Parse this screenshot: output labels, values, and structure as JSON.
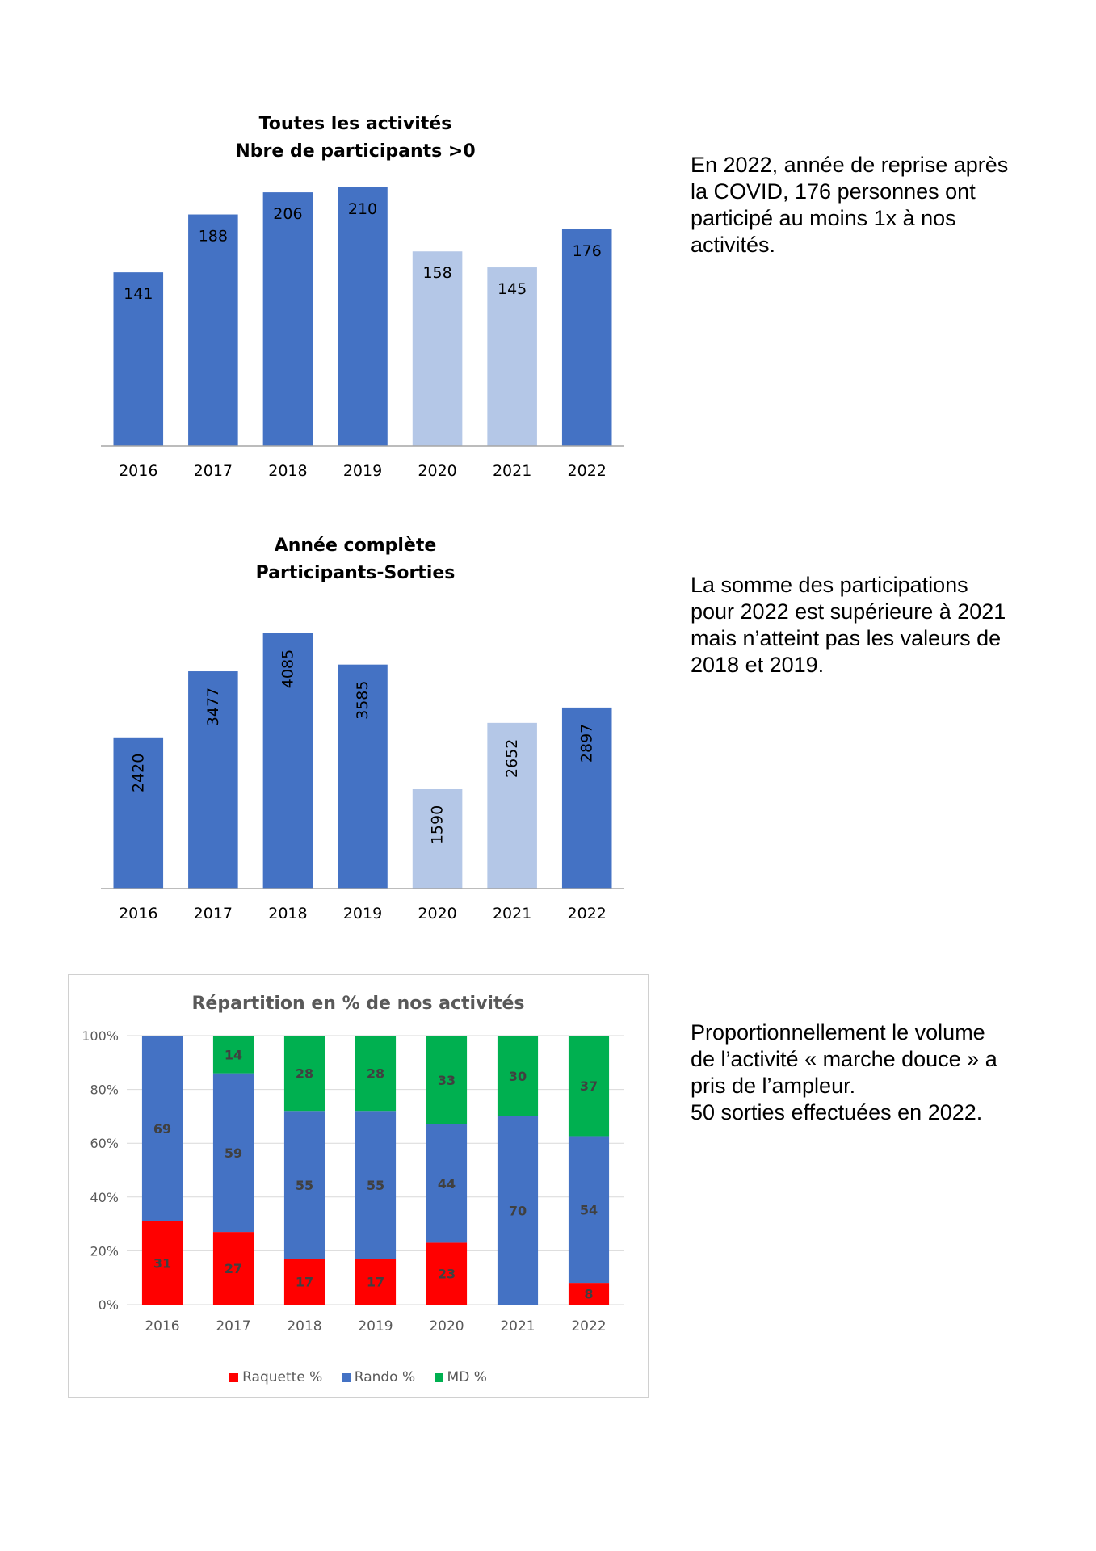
{
  "charts": [
    {
      "title_lines": [
        "Toutes les activités",
        "Nbre de participants >0"
      ],
      "chart_data": {
        "type": "bar",
        "title": "Toutes les activités Nbre de participants >0",
        "categories": [
          "2016",
          "2017",
          "2018",
          "2019",
          "2020",
          "2021",
          "2022"
        ],
        "values": [
          141,
          188,
          206,
          210,
          158,
          145,
          176
        ],
        "ylim": [
          0,
          210
        ],
        "grid": false,
        "colors": [
          "#4472c4",
          "#4472c4",
          "#4472c4",
          "#4472c4",
          "#b4c7e7",
          "#b4c7e7",
          "#4472c4"
        ],
        "data_labels": [
          "141",
          "188",
          "206",
          "210",
          "158",
          "145",
          "176"
        ]
      }
    },
    {
      "title_lines": [
        "Année complète",
        "Participants-Sorties"
      ],
      "chart_data": {
        "type": "bar",
        "title": "Année complète Participants-Sorties",
        "categories": [
          "2016",
          "2017",
          "2018",
          "2019",
          "2020",
          "2021",
          "2022"
        ],
        "values": [
          2420,
          3477,
          4085,
          3585,
          1590,
          2652,
          2897
        ],
        "ylim": [
          0,
          4085
        ],
        "grid": false,
        "label_orientation": "vertical",
        "colors": [
          "#4472c4",
          "#4472c4",
          "#4472c4",
          "#4472c4",
          "#b4c7e7",
          "#b4c7e7",
          "#4472c4"
        ],
        "data_labels": [
          "2420",
          "3477",
          "4085",
          "3585",
          "1590",
          "2652",
          "2897"
        ]
      }
    },
    {
      "title_lines": [
        "Répartition en % de nos activités"
      ],
      "chart_data": {
        "type": "bar",
        "stacked": true,
        "title": "Répartition en % de nos activités",
        "categories": [
          "2016",
          "2017",
          "2018",
          "2019",
          "2020",
          "2021",
          "2022"
        ],
        "y_ticks": [
          "0%",
          "20%",
          "40%",
          "60%",
          "80%",
          "100%"
        ],
        "ylim": [
          0,
          100
        ],
        "grid": true,
        "legend": "bottom",
        "series": [
          {
            "name": "Raquette %",
            "color": "#ff0000",
            "values": [
              31,
              27,
              17,
              17,
              23,
              0,
              8
            ],
            "labels": [
              "31",
              "27",
              "17",
              "17",
              "23",
              "",
              "8"
            ]
          },
          {
            "name": "Rando %",
            "color": "#4472c4",
            "values": [
              69,
              59,
              55,
              55,
              44,
              70,
              54
            ],
            "labels": [
              "69",
              "59",
              "55",
              "55",
              "44",
              "70",
              "54"
            ]
          },
          {
            "name": "MD %",
            "color": "#00b050",
            "values": [
              0,
              14,
              28,
              28,
              33,
              30,
              37
            ],
            "labels": [
              "",
              "14",
              "28",
              "28",
              "33",
              "30",
              "37"
            ]
          }
        ]
      }
    }
  ],
  "notes": [
    [
      "En 2022, année de reprise après",
      "la COVID, 176 personnes ont",
      "participé au moins 1x à nos",
      "activités."
    ],
    [
      "La somme des participations",
      "pour 2022 est supérieure à 2021",
      "mais n’atteint pas les valeurs de",
      "2018 et 2019."
    ],
    [
      "Proportionnellement le volume",
      "de l’activité « marche douce » a",
      "pris de l’ampleur.",
      "50 sorties effectuées en 2022."
    ]
  ]
}
